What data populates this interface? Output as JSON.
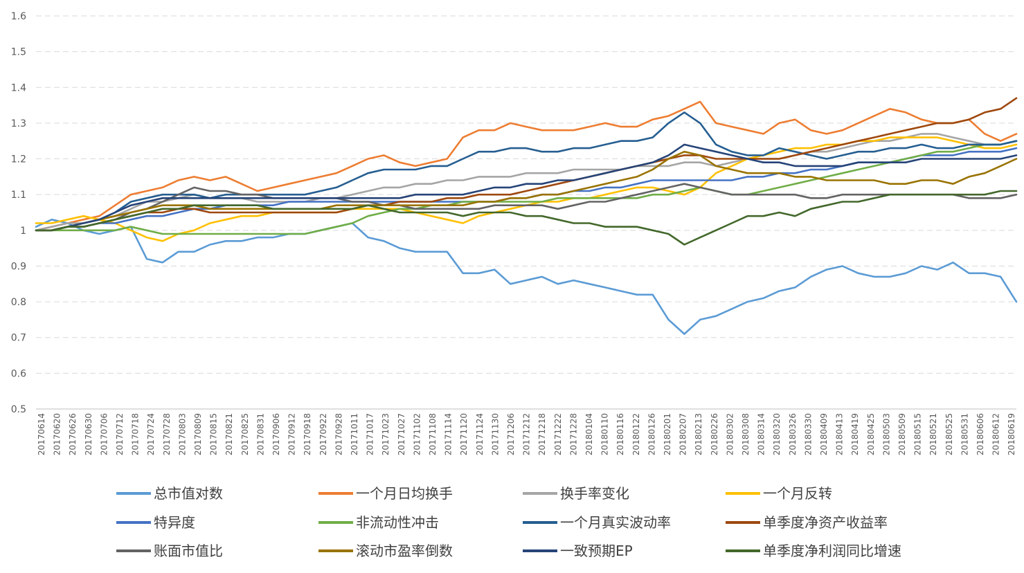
{
  "chart_data": {
    "type": "line",
    "title": "",
    "xlabel": "",
    "ylabel": "",
    "ylim": [
      0.5,
      1.6
    ],
    "yticks": [
      0.5,
      0.6,
      0.7,
      0.8,
      0.9,
      1,
      1.1,
      1.2,
      1.3,
      1.4,
      1.5,
      1.6
    ],
    "ytick_labels": [
      "0.5",
      "0.6",
      "0.7",
      "0.8",
      "0.9",
      "1",
      "1.1",
      "1.2",
      "1.3",
      "1.4",
      "1.5",
      "1.6"
    ],
    "grid": "horizontal-dashed",
    "legend_position": "bottom",
    "x_labels": [
      "20170614",
      "20170620",
      "20170626",
      "20170630",
      "20170706",
      "20170712",
      "20170718",
      "20170724",
      "20170728",
      "20170803",
      "20170809",
      "20170815",
      "20170821",
      "20170825",
      "20170831",
      "20170906",
      "20170912",
      "20170918",
      "20170922",
      "20170928",
      "20171011",
      "20171017",
      "20171023",
      "20171027",
      "20171102",
      "20171108",
      "20171114",
      "20171120",
      "20171124",
      "20171130",
      "20171206",
      "20171212",
      "20171218",
      "20171222",
      "20171228",
      "20180104",
      "20180110",
      "20180116",
      "20180122",
      "20180126",
      "20180201",
      "20180207",
      "20180213",
      "20180226",
      "20180302",
      "20180308",
      "20180314",
      "20180320",
      "20180326",
      "20180330",
      "20180409",
      "20180413",
      "20180419",
      "20180425",
      "20180503",
      "20180509",
      "20180515",
      "20180521",
      "20180525",
      "20180531",
      "20180606",
      "20180612",
      "20180619"
    ],
    "series": [
      {
        "name": "总市值对数",
        "color": "#5B9BD5",
        "values": [
          1.01,
          1.03,
          1.02,
          1.0,
          0.99,
          1.0,
          1.01,
          0.92,
          0.91,
          0.94,
          0.94,
          0.96,
          0.97,
          0.97,
          0.98,
          0.98,
          0.99,
          0.99,
          1.0,
          1.01,
          1.02,
          0.98,
          0.97,
          0.95,
          0.94,
          0.94,
          0.94,
          0.88,
          0.88,
          0.89,
          0.85,
          0.86,
          0.87,
          0.85,
          0.86,
          0.85,
          0.84,
          0.83,
          0.82,
          0.82,
          0.75,
          0.71,
          0.75,
          0.76,
          0.78,
          0.8,
          0.81,
          0.83,
          0.84,
          0.87,
          0.89,
          0.9,
          0.88,
          0.87,
          0.87,
          0.88,
          0.9,
          0.89,
          0.91,
          0.88,
          0.88,
          0.87,
          0.8
        ]
      },
      {
        "name": "一个月日均换手",
        "color": "#ED7D31",
        "values": [
          1.0,
          1.01,
          1.02,
          1.03,
          1.04,
          1.07,
          1.1,
          1.11,
          1.12,
          1.14,
          1.15,
          1.14,
          1.15,
          1.13,
          1.11,
          1.12,
          1.13,
          1.14,
          1.15,
          1.16,
          1.18,
          1.2,
          1.21,
          1.19,
          1.18,
          1.19,
          1.2,
          1.26,
          1.28,
          1.28,
          1.3,
          1.29,
          1.28,
          1.28,
          1.28,
          1.29,
          1.3,
          1.29,
          1.29,
          1.31,
          1.32,
          1.34,
          1.36,
          1.3,
          1.29,
          1.28,
          1.27,
          1.3,
          1.31,
          1.28,
          1.27,
          1.28,
          1.3,
          1.32,
          1.34,
          1.33,
          1.31,
          1.3,
          1.3,
          1.31,
          1.27,
          1.25,
          1.27
        ]
      },
      {
        "name": "换手率变化",
        "color": "#A5A5A5",
        "values": [
          1.0,
          1.01,
          1.02,
          1.02,
          1.03,
          1.04,
          1.06,
          1.08,
          1.08,
          1.09,
          1.1,
          1.09,
          1.09,
          1.09,
          1.08,
          1.08,
          1.08,
          1.08,
          1.09,
          1.09,
          1.1,
          1.11,
          1.12,
          1.12,
          1.13,
          1.13,
          1.14,
          1.14,
          1.15,
          1.15,
          1.15,
          1.16,
          1.16,
          1.16,
          1.17,
          1.17,
          1.17,
          1.17,
          1.18,
          1.18,
          1.18,
          1.19,
          1.19,
          1.18,
          1.19,
          1.2,
          1.2,
          1.2,
          1.21,
          1.22,
          1.22,
          1.23,
          1.24,
          1.25,
          1.25,
          1.26,
          1.27,
          1.27,
          1.26,
          1.25,
          1.24,
          1.24,
          1.25
        ]
      },
      {
        "name": "一个月反转",
        "color": "#FFC000",
        "values": [
          1.02,
          1.02,
          1.03,
          1.04,
          1.03,
          1.02,
          1.0,
          0.98,
          0.97,
          0.99,
          1.0,
          1.02,
          1.03,
          1.04,
          1.04,
          1.05,
          1.05,
          1.05,
          1.05,
          1.05,
          1.06,
          1.06,
          1.06,
          1.06,
          1.05,
          1.04,
          1.03,
          1.02,
          1.04,
          1.05,
          1.06,
          1.07,
          1.08,
          1.08,
          1.09,
          1.09,
          1.1,
          1.11,
          1.12,
          1.12,
          1.11,
          1.1,
          1.12,
          1.16,
          1.18,
          1.2,
          1.21,
          1.22,
          1.23,
          1.23,
          1.24,
          1.24,
          1.25,
          1.25,
          1.26,
          1.26,
          1.26,
          1.26,
          1.25,
          1.24,
          1.23,
          1.23,
          1.24
        ]
      },
      {
        "name": "特异度",
        "color": "#4472C4",
        "values": [
          1.0,
          1.0,
          1.01,
          1.01,
          1.02,
          1.02,
          1.03,
          1.04,
          1.04,
          1.05,
          1.06,
          1.06,
          1.07,
          1.07,
          1.07,
          1.07,
          1.08,
          1.08,
          1.08,
          1.08,
          1.08,
          1.08,
          1.08,
          1.08,
          1.08,
          1.08,
          1.08,
          1.08,
          1.08,
          1.08,
          1.09,
          1.09,
          1.1,
          1.1,
          1.11,
          1.11,
          1.12,
          1.12,
          1.13,
          1.14,
          1.14,
          1.14,
          1.14,
          1.14,
          1.14,
          1.15,
          1.15,
          1.16,
          1.16,
          1.17,
          1.17,
          1.18,
          1.19,
          1.19,
          1.19,
          1.2,
          1.21,
          1.21,
          1.21,
          1.22,
          1.22,
          1.22,
          1.23
        ]
      },
      {
        "name": "非流动性冲击",
        "color": "#70AD47",
        "values": [
          1.0,
          1.0,
          1.0,
          1.0,
          1.0,
          1.0,
          1.01,
          1.0,
          0.99,
          0.99,
          0.99,
          0.99,
          0.99,
          0.99,
          0.99,
          0.99,
          0.99,
          0.99,
          1.0,
          1.01,
          1.02,
          1.04,
          1.05,
          1.06,
          1.06,
          1.07,
          1.07,
          1.08,
          1.08,
          1.08,
          1.08,
          1.08,
          1.08,
          1.09,
          1.09,
          1.09,
          1.09,
          1.09,
          1.09,
          1.1,
          1.1,
          1.11,
          1.12,
          1.11,
          1.1,
          1.1,
          1.11,
          1.12,
          1.13,
          1.14,
          1.15,
          1.16,
          1.17,
          1.18,
          1.19,
          1.2,
          1.21,
          1.22,
          1.22,
          1.23,
          1.24,
          1.24,
          1.25
        ]
      },
      {
        "name": "一个月真实波动率",
        "color": "#255E91",
        "values": [
          1.0,
          1.0,
          1.01,
          1.02,
          1.03,
          1.05,
          1.08,
          1.09,
          1.1,
          1.1,
          1.1,
          1.09,
          1.1,
          1.1,
          1.1,
          1.1,
          1.1,
          1.1,
          1.11,
          1.12,
          1.14,
          1.16,
          1.17,
          1.17,
          1.17,
          1.18,
          1.18,
          1.2,
          1.22,
          1.22,
          1.23,
          1.23,
          1.22,
          1.22,
          1.23,
          1.23,
          1.24,
          1.25,
          1.25,
          1.26,
          1.3,
          1.33,
          1.3,
          1.24,
          1.22,
          1.21,
          1.21,
          1.23,
          1.22,
          1.21,
          1.2,
          1.21,
          1.22,
          1.22,
          1.23,
          1.23,
          1.24,
          1.23,
          1.23,
          1.24,
          1.24,
          1.24,
          1.25
        ]
      },
      {
        "name": "单季度净资产收益率",
        "color": "#9E480E",
        "values": [
          1.0,
          1.0,
          1.01,
          1.01,
          1.02,
          1.03,
          1.04,
          1.05,
          1.05,
          1.06,
          1.06,
          1.05,
          1.05,
          1.05,
          1.05,
          1.05,
          1.05,
          1.05,
          1.05,
          1.05,
          1.06,
          1.07,
          1.07,
          1.08,
          1.08,
          1.08,
          1.09,
          1.09,
          1.1,
          1.1,
          1.1,
          1.11,
          1.12,
          1.13,
          1.14,
          1.15,
          1.16,
          1.17,
          1.18,
          1.19,
          1.2,
          1.21,
          1.21,
          1.2,
          1.2,
          1.2,
          1.2,
          1.2,
          1.21,
          1.22,
          1.23,
          1.24,
          1.25,
          1.26,
          1.27,
          1.28,
          1.29,
          1.3,
          1.3,
          1.31,
          1.33,
          1.34,
          1.37
        ]
      },
      {
        "name": "账面市值比",
        "color": "#636363",
        "values": [
          1.0,
          1.0,
          1.01,
          1.01,
          1.02,
          1.03,
          1.05,
          1.06,
          1.08,
          1.1,
          1.12,
          1.11,
          1.11,
          1.1,
          1.1,
          1.09,
          1.09,
          1.09,
          1.09,
          1.09,
          1.08,
          1.08,
          1.07,
          1.07,
          1.06,
          1.06,
          1.06,
          1.06,
          1.06,
          1.07,
          1.07,
          1.07,
          1.07,
          1.06,
          1.07,
          1.08,
          1.08,
          1.09,
          1.1,
          1.11,
          1.12,
          1.13,
          1.12,
          1.11,
          1.1,
          1.1,
          1.1,
          1.1,
          1.1,
          1.09,
          1.09,
          1.1,
          1.1,
          1.1,
          1.1,
          1.1,
          1.1,
          1.1,
          1.1,
          1.09,
          1.09,
          1.09,
          1.1
        ]
      },
      {
        "name": "滚动市盈率倒数",
        "color": "#997300",
        "values": [
          1.0,
          1.0,
          1.01,
          1.02,
          1.03,
          1.04,
          1.05,
          1.06,
          1.07,
          1.07,
          1.07,
          1.06,
          1.06,
          1.06,
          1.06,
          1.06,
          1.06,
          1.06,
          1.06,
          1.07,
          1.07,
          1.07,
          1.07,
          1.07,
          1.07,
          1.07,
          1.07,
          1.07,
          1.08,
          1.08,
          1.09,
          1.09,
          1.1,
          1.1,
          1.11,
          1.12,
          1.13,
          1.14,
          1.15,
          1.17,
          1.2,
          1.22,
          1.21,
          1.18,
          1.17,
          1.16,
          1.16,
          1.16,
          1.15,
          1.15,
          1.14,
          1.14,
          1.14,
          1.14,
          1.13,
          1.13,
          1.14,
          1.14,
          1.13,
          1.15,
          1.16,
          1.18,
          1.2
        ]
      },
      {
        "name": "一致预期EP",
        "color": "#264478",
        "values": [
          1.0,
          1.0,
          1.01,
          1.02,
          1.03,
          1.05,
          1.07,
          1.08,
          1.09,
          1.09,
          1.09,
          1.09,
          1.09,
          1.09,
          1.09,
          1.09,
          1.09,
          1.09,
          1.09,
          1.09,
          1.09,
          1.09,
          1.09,
          1.09,
          1.1,
          1.1,
          1.1,
          1.1,
          1.11,
          1.12,
          1.12,
          1.13,
          1.13,
          1.14,
          1.14,
          1.15,
          1.16,
          1.17,
          1.18,
          1.19,
          1.21,
          1.24,
          1.23,
          1.22,
          1.21,
          1.2,
          1.19,
          1.19,
          1.18,
          1.18,
          1.18,
          1.18,
          1.19,
          1.19,
          1.19,
          1.19,
          1.2,
          1.2,
          1.2,
          1.2,
          1.2,
          1.2,
          1.21
        ]
      },
      {
        "name": "单季度净利润同比增速",
        "color": "#43682B",
        "values": [
          1.0,
          1.0,
          1.01,
          1.01,
          1.02,
          1.03,
          1.04,
          1.05,
          1.06,
          1.06,
          1.07,
          1.07,
          1.07,
          1.07,
          1.07,
          1.06,
          1.06,
          1.06,
          1.06,
          1.06,
          1.06,
          1.07,
          1.06,
          1.05,
          1.05,
          1.05,
          1.05,
          1.04,
          1.05,
          1.05,
          1.05,
          1.04,
          1.04,
          1.03,
          1.02,
          1.02,
          1.01,
          1.01,
          1.01,
          1.0,
          0.99,
          0.96,
          0.98,
          1.0,
          1.02,
          1.04,
          1.04,
          1.05,
          1.04,
          1.06,
          1.07,
          1.08,
          1.08,
          1.09,
          1.1,
          1.1,
          1.1,
          1.1,
          1.1,
          1.1,
          1.1,
          1.11,
          1.11
        ]
      }
    ]
  }
}
